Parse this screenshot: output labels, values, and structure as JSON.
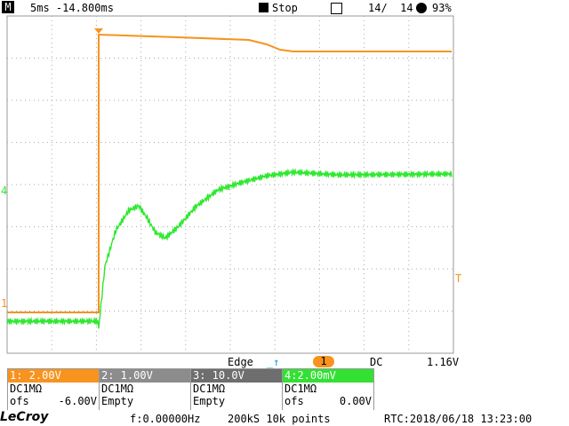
{
  "top_bar": {
    "mode": "M",
    "timebase": "5ms -14.800ms",
    "run_state": "Stop",
    "frame": "14/  14",
    "battery": "93%"
  },
  "markers": {
    "ch4": "4",
    "ch1": "1",
    "trigger_level": "T"
  },
  "trigger": {
    "type": "Edge",
    "source": "1",
    "coupling": "DC",
    "level": "1.16V"
  },
  "channels": [
    {
      "header": "1: 2.00V",
      "coupling": "DC1MΩ",
      "line2": "ofs",
      "offset": "-6.00V"
    },
    {
      "header": "2: 1.00V",
      "coupling": "DC1MΩ",
      "line2": "Empty"
    },
    {
      "header": "3: 10.0V",
      "coupling": "DC1MΩ",
      "line2": "Empty"
    },
    {
      "header": "4:2.00mV",
      "coupling": "DC1MΩ",
      "line2": "ofs",
      "offset": "0.00V"
    }
  ],
  "footer": {
    "brand": "LeCroy",
    "frequency": "f:0.00000Hz",
    "acquisition": "200kS 10k points",
    "rtc": "RTC:2018/06/18 13:23:00"
  }
}
